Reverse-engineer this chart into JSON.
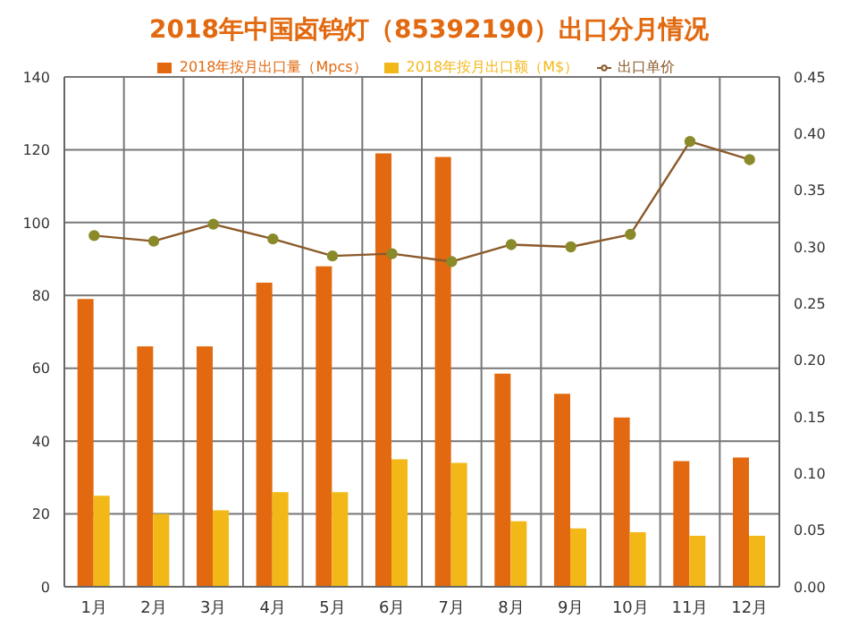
{
  "chart_data": {
    "type": "bar",
    "title": "2018年中国卤钨灯（85392190）出口分月情况",
    "categories": [
      "1月",
      "2月",
      "3月",
      "4月",
      "5月",
      "6月",
      "7月",
      "8月",
      "9月",
      "10月",
      "11月",
      "12月"
    ],
    "series": [
      {
        "name": "2018年按月出口量（Mpcs）",
        "color": "#e2690f",
        "values": [
          79,
          66,
          66,
          83.5,
          88,
          119,
          118,
          58.5,
          53,
          46.5,
          34.5,
          35.5
        ]
      },
      {
        "name": "2018年按月出口额（M$）",
        "color": "#f2b818",
        "values": [
          25,
          20,
          21,
          26,
          26,
          35,
          34,
          18,
          16,
          15,
          14,
          14
        ]
      },
      {
        "name": "出口单价",
        "type": "line",
        "axis": "y2",
        "color": "#8b5a2b",
        "marker": "circle",
        "values": [
          0.31,
          0.305,
          0.32,
          0.307,
          0.292,
          0.294,
          0.287,
          0.302,
          0.3,
          0.311,
          0.393,
          0.377
        ]
      }
    ],
    "ylim": [
      0,
      140
    ],
    "yticks": [
      0,
      20,
      40,
      60,
      80,
      100,
      120,
      140
    ],
    "y2lim": [
      0,
      0.45
    ],
    "y2ticks": [
      {
        "value": 0,
        "label": "0.00"
      },
      {
        "value": 0.05,
        "label": "0.05"
      },
      {
        "value": 0.1,
        "label": "0.10"
      },
      {
        "value": 0.15,
        "label": "0.15"
      },
      {
        "value": 0.2,
        "label": "0.20"
      },
      {
        "value": 0.25,
        "label": "0.25"
      },
      {
        "value": 0.3,
        "label": "0.30"
      },
      {
        "value": 0.35,
        "label": "0.35"
      },
      {
        "value": 0.4,
        "label": "0.40"
      },
      {
        "value": 0.45,
        "label": "0.45"
      }
    ],
    "grid": true,
    "legend": "top"
  }
}
